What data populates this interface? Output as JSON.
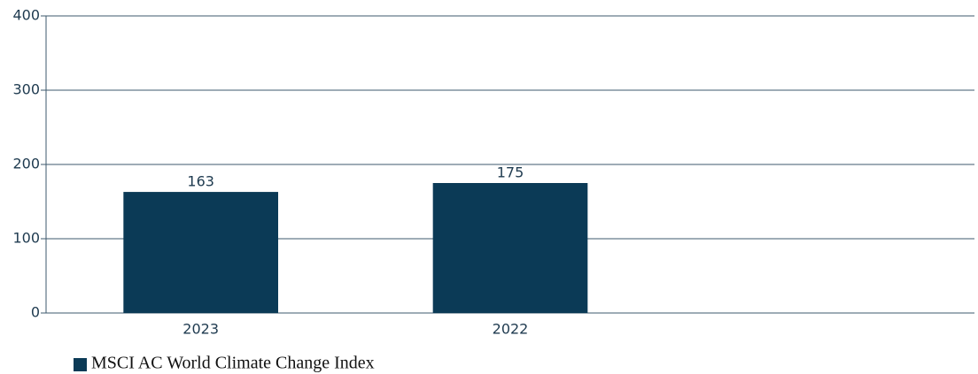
{
  "chart_data": {
    "type": "bar",
    "categories": [
      "2023",
      "2022",
      null
    ],
    "series": [
      {
        "name": "MSCI AC World Climate Change Index",
        "color": "#0b3a56",
        "values": [
          163,
          175,
          null
        ]
      }
    ],
    "ylim": [
      0,
      400
    ],
    "yticks": [
      0,
      100,
      200,
      300,
      400
    ],
    "grid": true,
    "legend": "bottom-left"
  }
}
